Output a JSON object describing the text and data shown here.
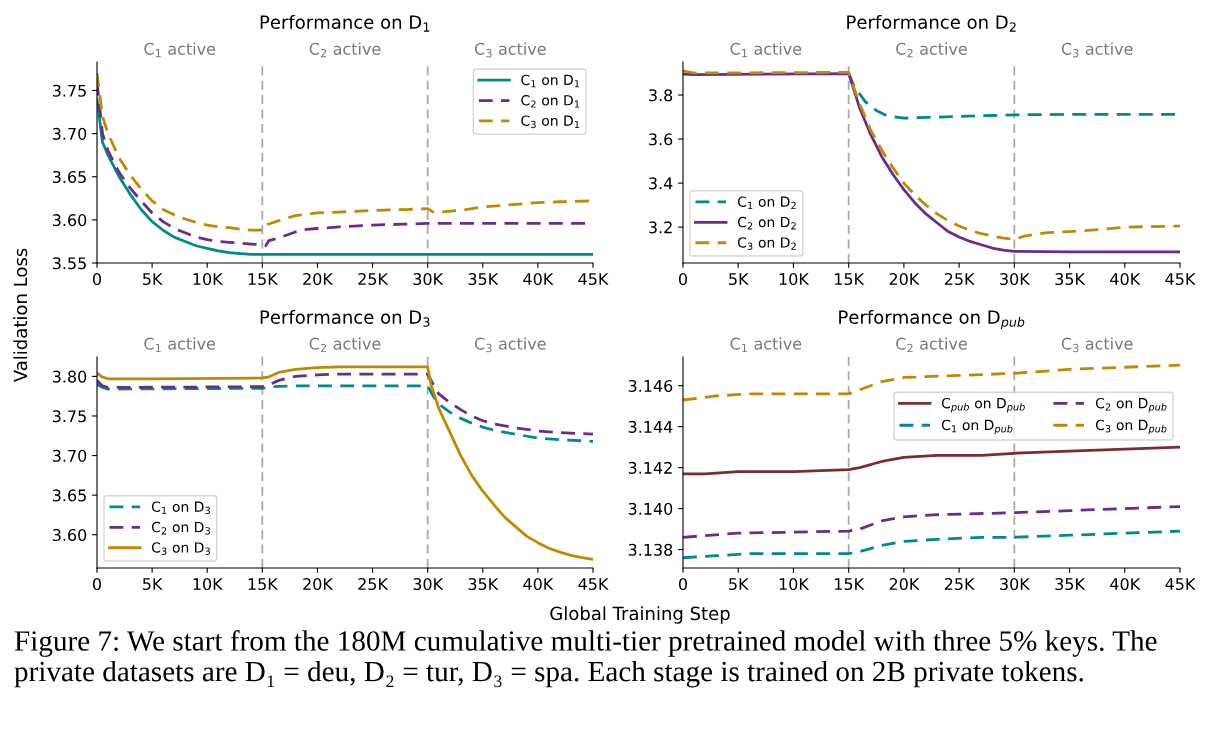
{
  "chart_data": [
    {
      "type": "line",
      "title": "Performance on D$_{1}$",
      "ylabel": "Validation Loss",
      "xlim": [
        0,
        45000
      ],
      "ylim": [
        3.55,
        3.783
      ],
      "xticks": [
        {
          "value": 0,
          "label": "0"
        },
        {
          "value": 5000,
          "label": "5K"
        },
        {
          "value": 10000,
          "label": "10K"
        },
        {
          "value": 15000,
          "label": "15K"
        },
        {
          "value": 20000,
          "label": "20K"
        },
        {
          "value": 25000,
          "label": "25K"
        },
        {
          "value": 30000,
          "label": "30K"
        },
        {
          "value": 35000,
          "label": "35K"
        },
        {
          "value": 40000,
          "label": "40K"
        },
        {
          "value": 45000,
          "label": "45K"
        }
      ],
      "yticks": [
        {
          "value": 3.55,
          "label": "3.55"
        },
        {
          "value": 3.6,
          "label": "3.60"
        },
        {
          "value": 3.65,
          "label": "3.65"
        },
        {
          "value": 3.7,
          "label": "3.70"
        },
        {
          "value": 3.75,
          "label": "3.75"
        }
      ],
      "grid": false,
      "legend": "top right",
      "marker": "none",
      "ref_lines": [
        {
          "axis": "x",
          "value": 15000,
          "color": "#aaaaaa",
          "line_style": "dashed"
        },
        {
          "axis": "x",
          "value": 30000,
          "color": "#aaaaaa",
          "line_style": "dashed"
        }
      ],
      "annotations": [
        "C$_{1}$ active",
        "C$_{2}$ active",
        "C$_{3}$ active"
      ],
      "series": [
        {
          "name": "C$_{1}$ on D$_{1}$",
          "color": "#008b8b",
          "line_style": "solid",
          "x": [
            0,
            500,
            1000,
            2000,
            3000,
            4000,
            5000,
            6000,
            7000,
            8000,
            9000,
            10000,
            11000,
            12000,
            13000,
            14000,
            15000,
            30000,
            45000
          ],
          "values": [
            3.74,
            3.69,
            3.675,
            3.65,
            3.63,
            3.612,
            3.598,
            3.588,
            3.58,
            3.575,
            3.57,
            3.567,
            3.564,
            3.562,
            3.561,
            3.56,
            3.56,
            3.56,
            3.56
          ]
        },
        {
          "name": "C$_{2}$ on D$_{1}$",
          "color": "#6a2c8a",
          "line_style": "dashed",
          "x": [
            0,
            500,
            1000,
            2000,
            3000,
            4000,
            5000,
            6000,
            7000,
            8000,
            9000,
            10000,
            11000,
            12000,
            13000,
            14000,
            15000,
            15300,
            15600,
            16500,
            18000,
            19000,
            20000,
            22000,
            25000,
            28000,
            30000,
            45000
          ],
          "values": [
            3.76,
            3.7,
            3.68,
            3.655,
            3.637,
            3.622,
            3.608,
            3.598,
            3.59,
            3.585,
            3.58,
            3.577,
            3.575,
            3.574,
            3.573,
            3.572,
            3.571,
            3.57,
            3.576,
            3.579,
            3.586,
            3.589,
            3.59,
            3.592,
            3.594,
            3.595,
            3.596,
            3.596
          ]
        },
        {
          "name": "C$_{3}$ on D$_{1}$",
          "color": "#c08a00",
          "line_style": "dashed",
          "x": [
            0,
            500,
            1000,
            2000,
            3000,
            4000,
            5000,
            6000,
            7000,
            8000,
            9000,
            10000,
            11000,
            12000,
            13000,
            14000,
            15000,
            15300,
            16000,
            18000,
            20000,
            22000,
            25000,
            28000,
            30000,
            30500,
            31000,
            33000,
            35000,
            37000,
            40000,
            42000,
            45000
          ],
          "values": [
            3.77,
            3.72,
            3.7,
            3.672,
            3.652,
            3.636,
            3.622,
            3.612,
            3.606,
            3.601,
            3.597,
            3.594,
            3.592,
            3.591,
            3.589,
            3.588,
            3.588,
            3.594,
            3.597,
            3.605,
            3.608,
            3.609,
            3.611,
            3.612,
            3.613,
            3.609,
            3.609,
            3.611,
            3.615,
            3.617,
            3.62,
            3.621,
            3.622
          ]
        }
      ]
    },
    {
      "type": "line",
      "title": "Performance on D$_{2}$",
      "xlim": [
        0,
        45000
      ],
      "ylim": [
        3.037,
        3.95
      ],
      "xticks": [
        {
          "value": 0,
          "label": "0"
        },
        {
          "value": 5000,
          "label": "5K"
        },
        {
          "value": 10000,
          "label": "10K"
        },
        {
          "value": 15000,
          "label": "15K"
        },
        {
          "value": 20000,
          "label": "20K"
        },
        {
          "value": 25000,
          "label": "25K"
        },
        {
          "value": 30000,
          "label": "30K"
        },
        {
          "value": 35000,
          "label": "35K"
        },
        {
          "value": 40000,
          "label": "40K"
        },
        {
          "value": 45000,
          "label": "45K"
        }
      ],
      "yticks": [
        3.2,
        3.4,
        3.6,
        3.8
      ],
      "grid": false,
      "legend": "bottom left",
      "marker": "none",
      "ref_lines": [
        {
          "axis": "x",
          "value": 15000,
          "color": "#aaaaaa",
          "line_style": "dashed"
        },
        {
          "axis": "x",
          "value": 30000,
          "color": "#aaaaaa",
          "line_style": "dashed"
        }
      ],
      "annotations": [
        "C$_{1}$ active",
        "C$_{2}$ active",
        "C$_{3}$ active"
      ],
      "series": [
        {
          "name": "C$_{1}$ on D$_{2}$",
          "color": "#008b8b",
          "line_style": "dashed",
          "x": [
            15000,
            15500,
            16500,
            17500,
            18500,
            20000,
            22000,
            25000,
            28000,
            30000,
            35000,
            45000
          ],
          "values": [
            3.898,
            3.84,
            3.77,
            3.73,
            3.705,
            3.695,
            3.698,
            3.703,
            3.707,
            3.71,
            3.712,
            3.712
          ]
        },
        {
          "name": "C$_{2}$ on D$_{2}$",
          "color": "#6a2c8a",
          "line_style": "solid",
          "x": [
            0,
            1000,
            15000,
            15500,
            16000,
            17000,
            18000,
            19000,
            20000,
            21000,
            22000,
            23000,
            24000,
            25000,
            26000,
            27000,
            28000,
            29000,
            30000,
            35000,
            45000
          ],
          "values": [
            3.895,
            3.893,
            3.897,
            3.82,
            3.74,
            3.62,
            3.52,
            3.44,
            3.37,
            3.31,
            3.26,
            3.22,
            3.18,
            3.155,
            3.135,
            3.12,
            3.105,
            3.095,
            3.09,
            3.088,
            3.088
          ]
        },
        {
          "name": "C$_{3}$ on D$_{2}$",
          "color": "#c08a00",
          "line_style": "dashed",
          "x": [
            0,
            1000,
            15000,
            15500,
            16000,
            17000,
            18000,
            19000,
            20000,
            21000,
            22000,
            23000,
            24000,
            25000,
            26000,
            27000,
            28000,
            29000,
            30000,
            31000,
            33000,
            35000,
            38000,
            40000,
            45000
          ],
          "values": [
            3.91,
            3.9,
            3.903,
            3.83,
            3.76,
            3.64,
            3.55,
            3.47,
            3.4,
            3.345,
            3.3,
            3.26,
            3.23,
            3.205,
            3.185,
            3.17,
            3.16,
            3.15,
            3.145,
            3.16,
            3.175,
            3.18,
            3.19,
            3.2,
            3.205
          ]
        }
      ]
    },
    {
      "type": "line",
      "title": "Performance on D$_{3}$",
      "xlabel": "Global Training Step",
      "xlim": [
        0,
        45000
      ],
      "ylim": [
        3.558,
        3.8245
      ],
      "xticks": [
        {
          "value": 0,
          "label": "0"
        },
        {
          "value": 5000,
          "label": "5K"
        },
        {
          "value": 10000,
          "label": "10K"
        },
        {
          "value": 15000,
          "label": "15K"
        },
        {
          "value": 20000,
          "label": "20K"
        },
        {
          "value": 25000,
          "label": "25K"
        },
        {
          "value": 30000,
          "label": "30K"
        },
        {
          "value": 35000,
          "label": "35K"
        },
        {
          "value": 40000,
          "label": "40K"
        },
        {
          "value": 45000,
          "label": "45K"
        }
      ],
      "yticks": [
        {
          "value": 3.6,
          "label": "3.60"
        },
        {
          "value": 3.65,
          "label": "3.65"
        },
        {
          "value": 3.7,
          "label": "3.70"
        },
        {
          "value": 3.75,
          "label": "3.75"
        },
        {
          "value": 3.8,
          "label": "3.80"
        }
      ],
      "grid": false,
      "legend": "bottom left",
      "marker": "none",
      "ref_lines": [
        {
          "axis": "x",
          "value": 15000,
          "color": "#aaaaaa",
          "line_style": "dashed"
        },
        {
          "axis": "x",
          "value": 30000,
          "color": "#aaaaaa",
          "line_style": "dashed"
        }
      ],
      "annotations": [
        "C$_{1}$ active",
        "C$_{2}$ active",
        "C$_{3}$ active"
      ],
      "series": [
        {
          "name": "C$_{1}$ on D$_{3}$",
          "color": "#008b8b",
          "line_style": "dashed",
          "x": [
            0,
            500,
            1000,
            15000,
            16000,
            18000,
            30000,
            30500,
            31000,
            32000,
            33000,
            34000,
            35000,
            36000,
            38000,
            40000,
            42000,
            45000
          ],
          "values": [
            3.79,
            3.786,
            3.784,
            3.785,
            3.787,
            3.788,
            3.788,
            3.775,
            3.765,
            3.755,
            3.747,
            3.741,
            3.736,
            3.732,
            3.727,
            3.722,
            3.72,
            3.718
          ]
        },
        {
          "name": "C$_{2}$ on D$_{3}$",
          "color": "#6a2c8a",
          "line_style": "dashed",
          "x": [
            0,
            500,
            1000,
            15000,
            15500,
            16500,
            18000,
            20000,
            22000,
            30000,
            30500,
            31000,
            32000,
            33000,
            34000,
            35000,
            36000,
            38000,
            40000,
            42000,
            45000
          ],
          "values": [
            3.795,
            3.788,
            3.786,
            3.787,
            3.789,
            3.795,
            3.8,
            3.802,
            3.803,
            3.803,
            3.79,
            3.778,
            3.767,
            3.758,
            3.75,
            3.744,
            3.74,
            3.735,
            3.731,
            3.729,
            3.727
          ]
        },
        {
          "name": "C$_{3}$ on D$_{3}$",
          "color": "#c08a00",
          "line_style": "solid",
          "x": [
            0,
            500,
            1000,
            5000,
            15000,
            15500,
            16500,
            18000,
            20000,
            22000,
            25000,
            30000,
            30300,
            31000,
            32000,
            33000,
            34000,
            35000,
            36000,
            37000,
            38000,
            39000,
            40000,
            41000,
            42000,
            43000,
            44000,
            45000
          ],
          "values": [
            3.804,
            3.799,
            3.797,
            3.797,
            3.798,
            3.799,
            3.805,
            3.809,
            3.811,
            3.812,
            3.812,
            3.812,
            3.79,
            3.76,
            3.73,
            3.7,
            3.675,
            3.655,
            3.638,
            3.622,
            3.61,
            3.598,
            3.59,
            3.583,
            3.578,
            3.574,
            3.571,
            3.569
          ]
        }
      ]
    },
    {
      "type": "line",
      "title": "Performance on D$_{pub}$",
      "xlim": [
        0,
        45000
      ],
      "ylim": [
        3.1371,
        3.1474
      ],
      "xticks": [
        {
          "value": 0,
          "label": "0"
        },
        {
          "value": 5000,
          "label": "5K"
        },
        {
          "value": 10000,
          "label": "10K"
        },
        {
          "value": 15000,
          "label": "15K"
        },
        {
          "value": 20000,
          "label": "20K"
        },
        {
          "value": 25000,
          "label": "25K"
        },
        {
          "value": 30000,
          "label": "30K"
        },
        {
          "value": 35000,
          "label": "35K"
        },
        {
          "value": 40000,
          "label": "40K"
        },
        {
          "value": 45000,
          "label": "45K"
        }
      ],
      "yticks": [
        {
          "value": 3.138,
          "label": "3.138"
        },
        {
          "value": 3.14,
          "label": "3.140"
        },
        {
          "value": 3.142,
          "label": "3.142"
        },
        {
          "value": 3.144,
          "label": "3.144"
        },
        {
          "value": 3.146,
          "label": "3.146"
        }
      ],
      "grid": false,
      "legend": "right",
      "marker": "none",
      "ref_lines": [
        {
          "axis": "x",
          "value": 15000,
          "color": "#aaaaaa",
          "line_style": "dashed"
        },
        {
          "axis": "x",
          "value": 30000,
          "color": "#aaaaaa",
          "line_style": "dashed"
        }
      ],
      "annotations": [
        "C$_{1}$ active",
        "C$_{2}$ active",
        "C$_{3}$ active",
        "Figure 7: We start from the 180M cumulative multi-tier pretrained model with three 5% keys. The private datasets are D₁ = deu, D₂ = tur, D₃ = spa. Each stage is trained on 2B private tokens."
      ],
      "series": [
        {
          "name": "C$_{pub}$ on D$_{pub}$",
          "color": "#7b2d32",
          "line_style": "solid",
          "x": [
            0,
            2000,
            5000,
            10000,
            15000,
            16000,
            18000,
            20000,
            23000,
            27000,
            30000,
            35000,
            40000,
            45000
          ],
          "values": [
            3.1417,
            3.1417,
            3.1418,
            3.1418,
            3.1419,
            3.142,
            3.1423,
            3.1425,
            3.1426,
            3.1426,
            3.1427,
            3.1428,
            3.1429,
            3.143
          ]
        },
        {
          "name": "C$_{1}$ on D$_{pub}$",
          "color": "#008b8b",
          "line_style": "dashed",
          "x": [
            0,
            3000,
            6000,
            15000,
            16000,
            18000,
            20000,
            23000,
            27000,
            30000,
            35000,
            40000,
            45000
          ],
          "values": [
            3.1376,
            3.1377,
            3.1378,
            3.1378,
            3.1379,
            3.1382,
            3.1384,
            3.1385,
            3.1386,
            3.1386,
            3.1387,
            3.1388,
            3.1389
          ]
        },
        {
          "name": "C$_{2}$ on D$_{pub}$",
          "color": "#6a2c8a",
          "line_style": "dashed",
          "x": [
            0,
            5000,
            15000,
            16000,
            18000,
            20000,
            23000,
            30000,
            35000,
            40000,
            45000
          ],
          "values": [
            3.1386,
            3.1388,
            3.1389,
            3.139,
            3.1394,
            3.1396,
            3.1397,
            3.1398,
            3.1399,
            3.14,
            3.1401
          ]
        },
        {
          "name": "C$_{3}$ on D$_{pub}$",
          "color": "#c08a00",
          "line_style": "dashed",
          "x": [
            0,
            3000,
            6000,
            15000,
            16000,
            18000,
            20000,
            25000,
            30000,
            35000,
            40000,
            45000
          ],
          "values": [
            3.1453,
            3.1455,
            3.1456,
            3.1456,
            3.1458,
            3.1462,
            3.1464,
            3.1465,
            3.1466,
            3.1468,
            3.1469,
            3.147
          ]
        }
      ]
    }
  ]
}
